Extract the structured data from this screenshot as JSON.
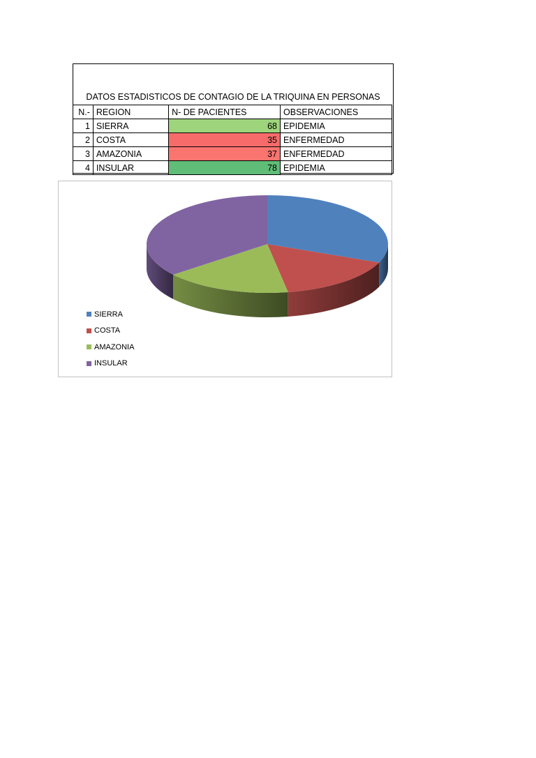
{
  "table": {
    "title": "DATOS ESTADISTICOS DE CONTAGIO DE LA TRIQUINA EN PERSONAS",
    "headers": [
      "N.-",
      "REGION",
      "N- DE PACIENTES",
      "OBSERVACIONES"
    ],
    "rows": [
      {
        "n": "1",
        "region": "SIERRA",
        "pacientes": "68",
        "obs": "EPIDEMIA",
        "cell_color": "#9ed47c"
      },
      {
        "n": "2",
        "region": "COSTA",
        "pacientes": "35",
        "obs": "ENFERMEDAD",
        "cell_color": "#f86b6b"
      },
      {
        "n": "3",
        "region": "AMAZONIA",
        "pacientes": "37",
        "obs": "ENFERMEDAD",
        "cell_color": "#fa7470"
      },
      {
        "n": "4",
        "region": "INSULAR",
        "pacientes": "78",
        "obs": "EPIDEMIA",
        "cell_color": "#5fbd77"
      }
    ]
  },
  "chart_data": {
    "type": "pie",
    "style": "3d",
    "categories": [
      "SIERRA",
      "COSTA",
      "AMAZONIA",
      "INSULAR"
    ],
    "values": [
      68,
      35,
      37,
      78
    ],
    "colors": [
      "#4f81bd",
      "#c0504d",
      "#9bbb59",
      "#8064a2"
    ],
    "legend_position": "bottom-left"
  }
}
